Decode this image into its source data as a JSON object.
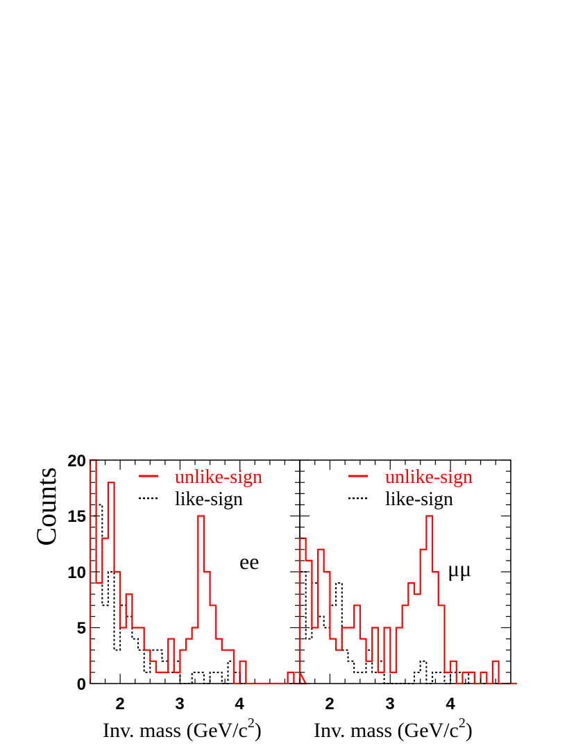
{
  "chart_data": [
    {
      "type": "histogram",
      "panel_label": "ee",
      "xlabel": "Inv. mass (GeV/c",
      "xlabel_sup": "2",
      "xlabel_close": ")",
      "ylabel": "Counts",
      "xlim": [
        1.5,
        5.0
      ],
      "ylim": [
        0,
        20
      ],
      "xticks": [
        "2",
        "3",
        "4"
      ],
      "yticks": [
        "0",
        "5",
        "10",
        "15",
        "20"
      ],
      "bin_width": 0.1,
      "series": [
        {
          "name": "unlike-sign",
          "color": "#ff0000",
          "style": "solid",
          "values": [
            20,
            9,
            13,
            18,
            10,
            5,
            8,
            5,
            5,
            3,
            2,
            1,
            1,
            4,
            1,
            3,
            4,
            5,
            15,
            10,
            7,
            4,
            3,
            3,
            0,
            2,
            0,
            0,
            0,
            0,
            0,
            0,
            0,
            1,
            0,
            1,
            0
          ]
        },
        {
          "name": "like-sign",
          "color": "#000000",
          "style": "dotted",
          "values": [
            15,
            16,
            7,
            10,
            3,
            7,
            6,
            4,
            3,
            1,
            3,
            3,
            2,
            1,
            2,
            0,
            0,
            1,
            1,
            0,
            1,
            1,
            0,
            2,
            1,
            0,
            0,
            0,
            0,
            0,
            0,
            0,
            0,
            0,
            0,
            0,
            0
          ]
        }
      ],
      "legend": {
        "position": "top-right"
      }
    },
    {
      "type": "histogram",
      "panel_label": "μμ",
      "xlabel": "Inv. mass (GeV/c",
      "xlabel_sup": "2",
      "xlabel_close": ")",
      "xlim": [
        1.5,
        5.0
      ],
      "ylim": [
        0,
        20
      ],
      "xticks": [
        "2",
        "3",
        "4"
      ],
      "bin_width": 0.1,
      "series": [
        {
          "name": "unlike-sign",
          "color": "#ff0000",
          "style": "solid",
          "values": [
            13,
            11,
            5,
            12,
            10,
            4,
            3,
            5,
            5,
            7,
            4,
            2,
            5,
            1,
            5,
            1,
            5,
            7,
            9,
            8,
            12,
            15,
            10,
            7,
            1,
            2,
            0,
            1,
            1,
            0,
            1,
            0,
            2,
            0,
            0,
            0,
            0
          ]
        },
        {
          "name": "like-sign",
          "color": "#000000",
          "style": "dotted",
          "values": [
            10,
            4,
            9,
            6,
            5,
            7,
            9,
            3,
            2,
            1,
            1,
            3,
            1,
            2,
            0,
            0,
            0,
            0,
            0,
            1,
            2,
            0,
            1,
            1,
            0,
            1,
            1,
            0,
            1,
            0,
            0,
            0,
            0,
            0,
            0,
            0,
            0
          ]
        }
      ],
      "legend": {
        "position": "top-right"
      }
    }
  ]
}
